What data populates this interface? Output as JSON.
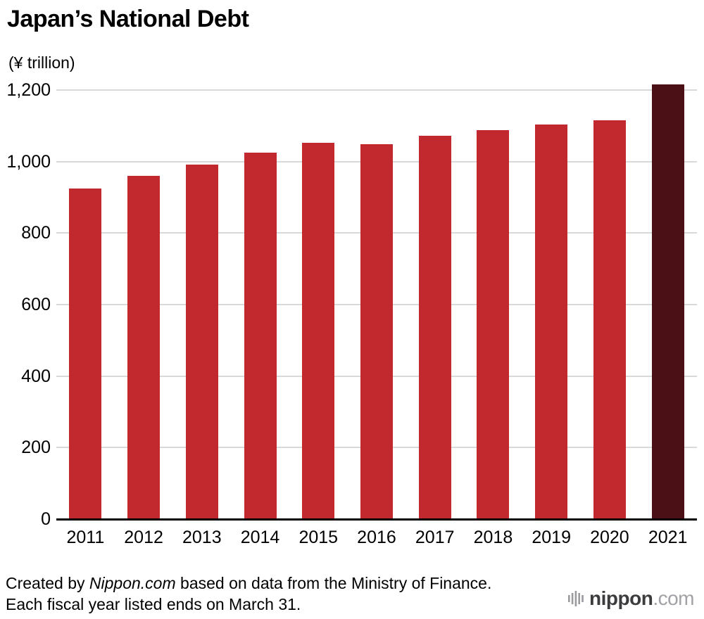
{
  "title": "Japan’s National Debt",
  "unit_label": "(¥ trillion)",
  "chart_data": {
    "type": "bar",
    "title": "Japan’s National Debt",
    "ylabel": "(¥ trillion)",
    "categories": [
      "2011",
      "2012",
      "2013",
      "2014",
      "2015",
      "2016",
      "2017",
      "2018",
      "2019",
      "2020",
      "2021"
    ],
    "values": [
      924,
      960,
      992,
      1025,
      1053,
      1049,
      1072,
      1088,
      1103,
      1115,
      1216
    ],
    "ylim": [
      0,
      1200
    ],
    "ytick_step": 200,
    "ytick_labels": [
      "0",
      "200",
      "400",
      "600",
      "800",
      "1,000",
      "1,200"
    ],
    "grid": true,
    "legend": false,
    "bar_color": "#c2292f",
    "highlight_color": "#4a1016",
    "highlight_index": 10
  },
  "footer": {
    "line1_prefix": "Created by ",
    "line1_source": "Nippon.com",
    "line1_suffix": " based on data from the Ministry of Finance.",
    "line2": "Each fiscal year listed ends on March 31."
  },
  "logo": {
    "name": "nippon",
    "tld": ".com"
  }
}
